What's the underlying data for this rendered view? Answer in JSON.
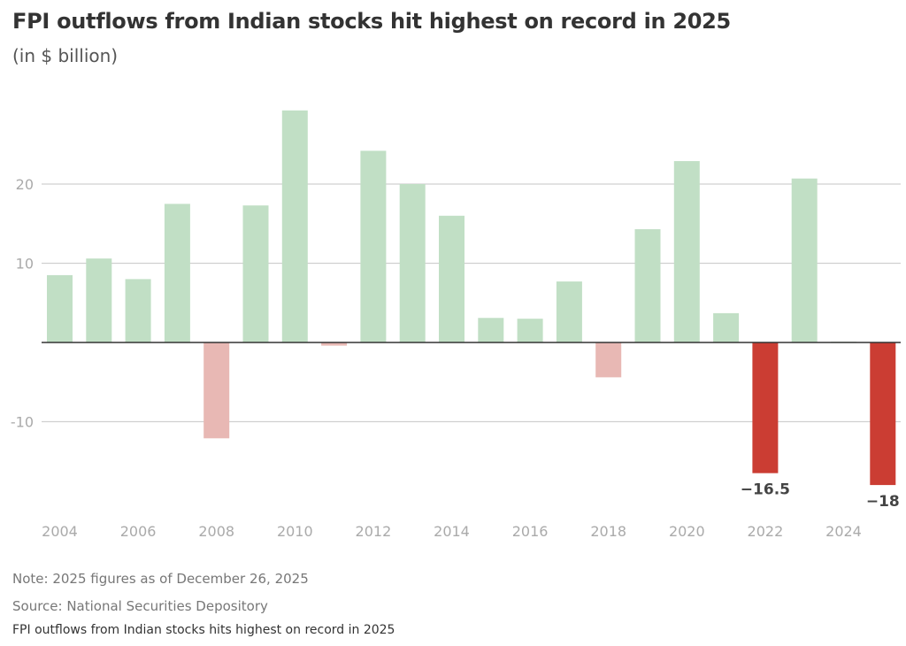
{
  "chart_data": {
    "type": "bar",
    "title": "FPI outflows from Indian stocks hit highest on record in 2025",
    "subtitle": "(in $ billion)",
    "xlabel": "",
    "ylabel": "",
    "categories": [
      "2004",
      "2005",
      "2006",
      "2007",
      "2008",
      "2009",
      "2010",
      "2011",
      "2012",
      "2013",
      "2014",
      "2015",
      "2016",
      "2017",
      "2018",
      "2019",
      "2020",
      "2021",
      "2022",
      "2023",
      "2024",
      "2025"
    ],
    "values": [
      8.5,
      10.6,
      8.0,
      17.5,
      -12.1,
      17.3,
      29.3,
      -0.4,
      24.2,
      20.0,
      16.0,
      3.1,
      3.0,
      7.7,
      -4.4,
      14.3,
      22.9,
      3.7,
      -16.5,
      20.7,
      0.1,
      -18
    ],
    "x_tick_labels": [
      "2004",
      "2006",
      "2008",
      "2010",
      "2012",
      "2014",
      "2016",
      "2018",
      "2020",
      "2022",
      "2024"
    ],
    "y_ticks": [
      20,
      10,
      -10
    ],
    "y_tick_labels": [
      "20",
      "10",
      "-10"
    ],
    "ylim": [
      -21,
      31
    ],
    "grid": true,
    "legend": "none",
    "data_labels": [
      {
        "category": "2022",
        "text": "−16.5"
      },
      {
        "category": "2025",
        "text": "−18"
      }
    ],
    "highlight_categories": [
      "2022",
      "2025"
    ],
    "colors": {
      "positive": "#c1dfc5",
      "negative": "#e8b8b4",
      "highlight_negative": "#cb3d33",
      "grid": "#d0d0d0",
      "zero_line": "#333333",
      "tick_text": "#aaaaaa",
      "data_label": "#444444"
    }
  },
  "footer": {
    "note": "Note: 2025 figures as of December 26, 2025",
    "source": "Source: National Securities Depository",
    "caption": "FPI outflows from Indian stocks hits highest on record in 2025"
  }
}
